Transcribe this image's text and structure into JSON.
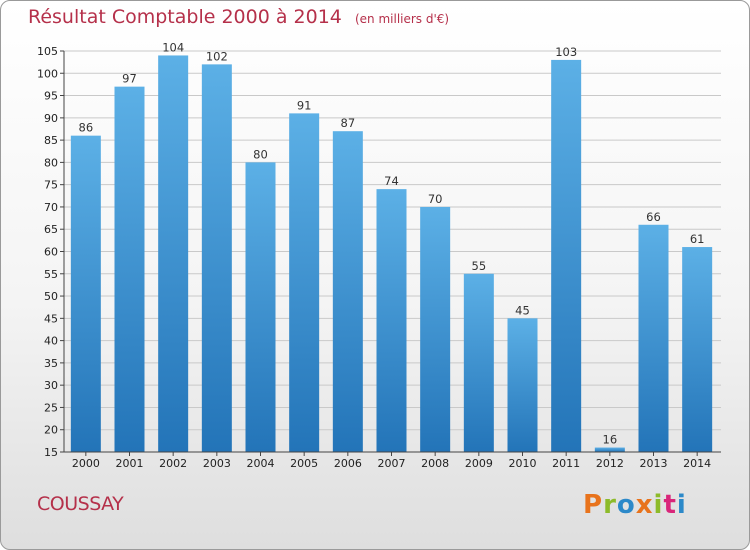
{
  "header": {
    "title": "Résultat Comptable 2000 à 2014",
    "subtitle": "(en milliers d'€)"
  },
  "footer": {
    "commune": "COUSSAY",
    "logo_text": "Proxiti",
    "logo_colors": [
      "#e8731c",
      "#8dbb2a",
      "#2c89c9",
      "#e8731c",
      "#8dbb2a",
      "#d9267a",
      "#2c89c9"
    ]
  },
  "colors": {
    "title": "#b5304a",
    "bar_top": "#5cb0e6",
    "bar_bottom": "#2374b8",
    "grid": "#c9c9c9"
  },
  "chart_data": {
    "type": "bar",
    "title": "Résultat Comptable 2000 à 2014",
    "subtitle": "(en milliers d'€)",
    "categories": [
      "2000",
      "2001",
      "2002",
      "2003",
      "2004",
      "2005",
      "2006",
      "2007",
      "2008",
      "2009",
      "2010",
      "2011",
      "2012",
      "2013",
      "2014"
    ],
    "values": [
      86,
      97,
      104,
      102,
      80,
      91,
      87,
      74,
      70,
      55,
      45,
      103,
      16,
      66,
      61
    ],
    "ylim": [
      15,
      105
    ],
    "yticks": [
      15,
      20,
      25,
      30,
      35,
      40,
      45,
      50,
      55,
      60,
      65,
      70,
      75,
      80,
      85,
      90,
      95,
      100,
      105
    ],
    "grid": true,
    "legend": "none"
  }
}
